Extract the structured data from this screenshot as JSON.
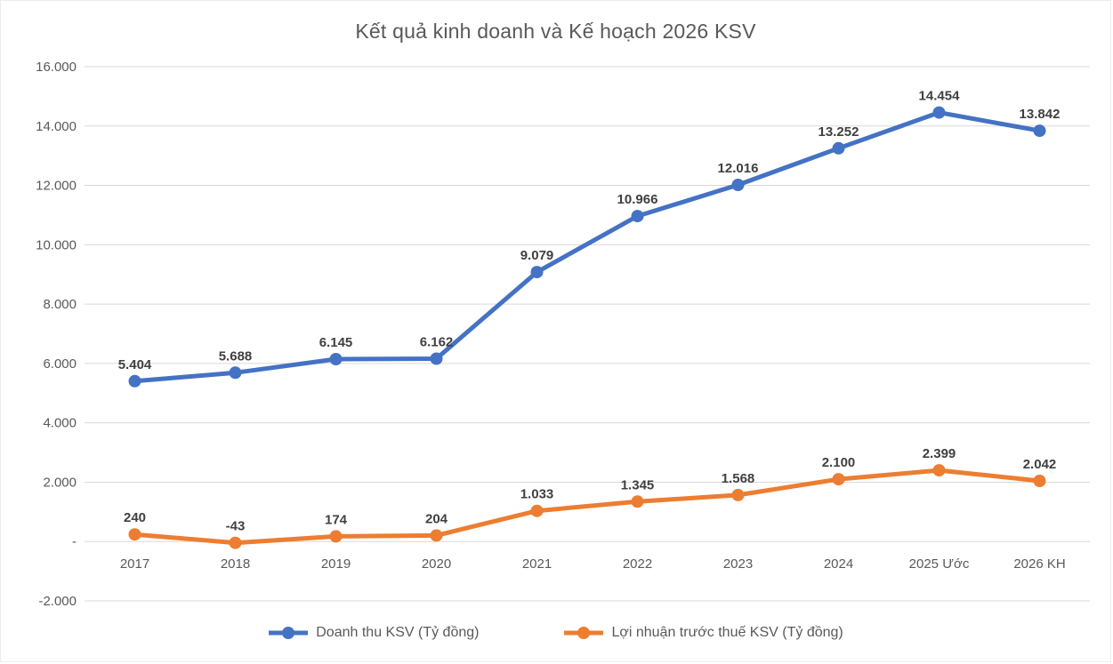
{
  "chart_data": {
    "type": "line",
    "title": "Kết quả kinh doanh và Kế hoạch 2026 KSV",
    "xlabel": "",
    "ylabel": "",
    "categories": [
      "2017",
      "2018",
      "2019",
      "2020",
      "2021",
      "2022",
      "2023",
      "2024",
      "2025 Ước",
      "2026 KH"
    ],
    "series": [
      {
        "name": "Doanh thu KSV (Tỷ đồng)",
        "color": "#4472C4",
        "values": [
          5404,
          5688,
          6145,
          6162,
          9079,
          10966,
          12016,
          13252,
          14454,
          13842
        ],
        "labels": [
          "5.404",
          "5.688",
          "6.145",
          "6.162",
          "9.079",
          "10.966",
          "12.016",
          "13.252",
          "14.454",
          "13.842"
        ]
      },
      {
        "name": "Lợi nhuận trước thuế KSV (Tỷ đồng)",
        "color": "#ED7D31",
        "values": [
          240,
          -43,
          174,
          204,
          1033,
          1345,
          1568,
          2100,
          2399,
          2042
        ],
        "labels": [
          "240",
          "-43",
          "174",
          "204",
          "1.033",
          "1.345",
          "1.568",
          "2.100",
          "2.399",
          "2.042"
        ]
      }
    ],
    "ylim": [
      -2000,
      16000
    ],
    "yticks": [
      {
        "value": 16000,
        "label": "16.000"
      },
      {
        "value": 14000,
        "label": "14.000"
      },
      {
        "value": 12000,
        "label": "12.000"
      },
      {
        "value": 10000,
        "label": "10.000"
      },
      {
        "value": 8000,
        "label": "8.000"
      },
      {
        "value": 6000,
        "label": "6.000"
      },
      {
        "value": 4000,
        "label": "4.000"
      },
      {
        "value": 2000,
        "label": "2.000"
      },
      {
        "value": 0,
        "label": "-"
      },
      {
        "value": -2000,
        "label": "-2.000"
      }
    ],
    "grid": true,
    "legend_position": "bottom"
  },
  "style": {
    "grid_color": "#D9D9D9",
    "axis_text_color": "#595959",
    "data_label_color": "#404040",
    "title_color": "#595959"
  }
}
